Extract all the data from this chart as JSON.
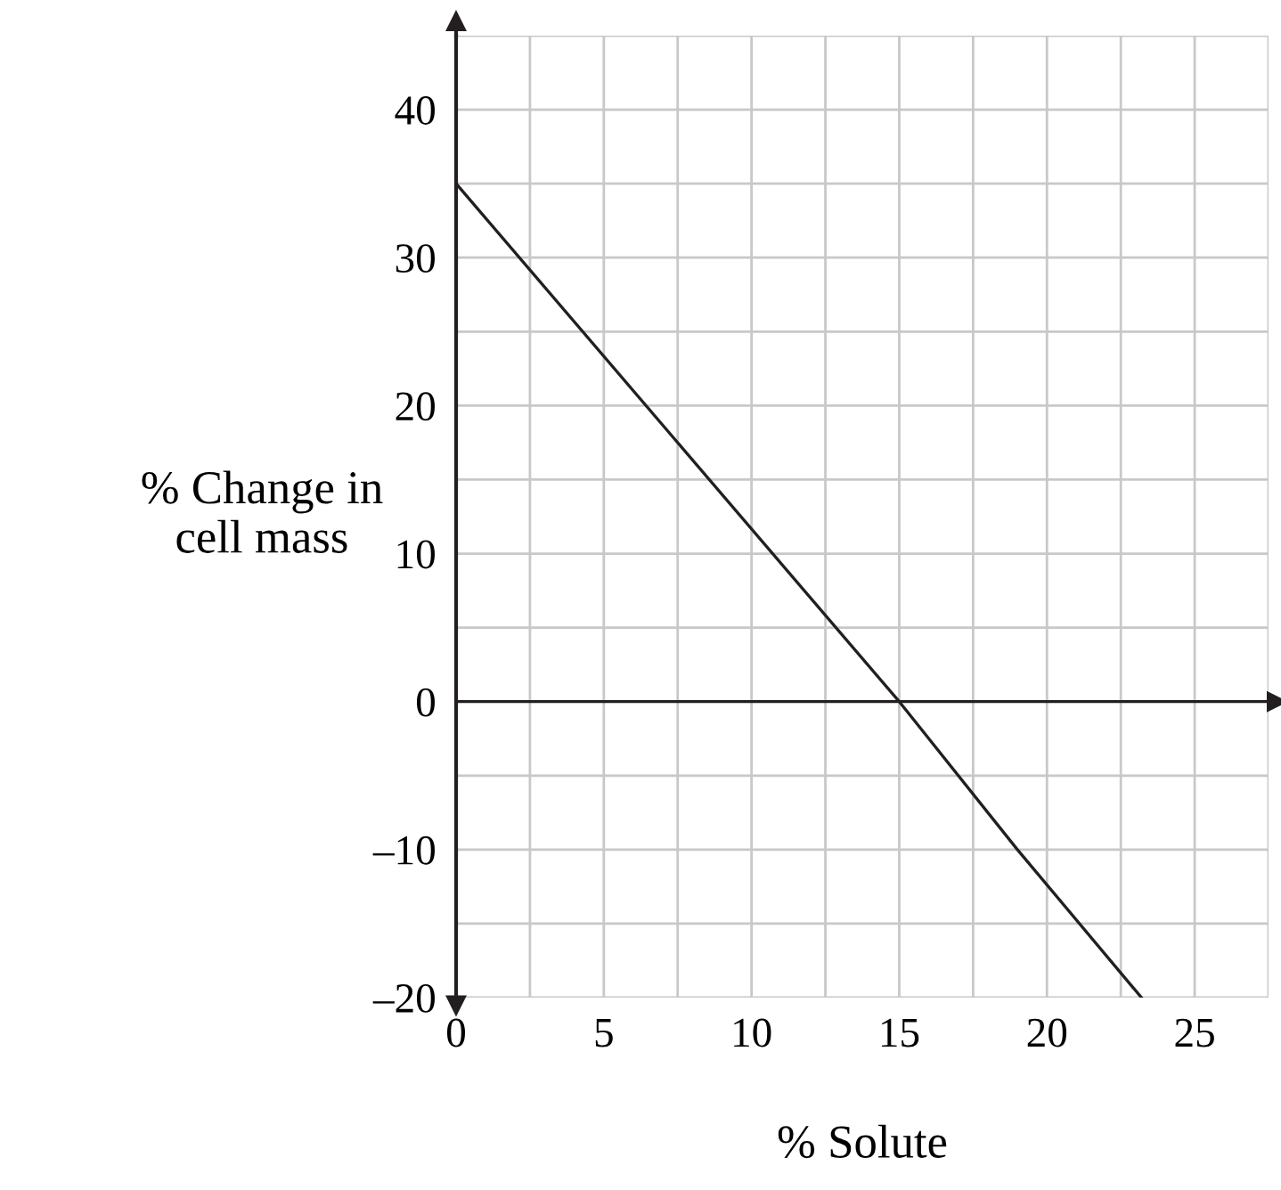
{
  "chart_data": {
    "type": "line",
    "xlabel": "% Solute",
    "ylabel": "% Change in\ncell mass",
    "x": [
      0,
      15,
      19,
      23.2
    ],
    "series": [
      {
        "color": "#231f20",
        "values": [
          35,
          0,
          -10,
          -20
        ]
      }
    ],
    "xlim": [
      0,
      27.5
    ],
    "ylim": [
      -20,
      45
    ],
    "xticks": [
      0,
      {
        "value": 2.5,
        "label": null
      },
      5,
      {
        "value": 7.5,
        "label": null
      },
      10,
      {
        "value": 12.5,
        "label": null
      },
      15,
      {
        "value": 17.5,
        "label": null
      },
      20,
      {
        "value": 22.5,
        "label": null
      },
      25,
      {
        "value": 27.5,
        "label": null
      }
    ],
    "yticks": [
      {
        "value": -20,
        "label": "–20"
      },
      {
        "value": -15,
        "label": null
      },
      {
        "value": -10,
        "label": "–10"
      },
      {
        "value": -5,
        "label": null
      },
      0,
      {
        "value": 5,
        "label": null
      },
      10,
      {
        "value": 15,
        "label": null
      },
      20,
      {
        "value": 25,
        "label": null
      },
      30,
      {
        "value": 35,
        "label": null
      },
      40,
      {
        "value": 45,
        "label": null
      }
    ],
    "ref_lines": [
      {
        "axis": "y",
        "value": 0,
        "label": null,
        "color": "#231f20"
      }
    ],
    "grid": true,
    "marker": "none",
    "line_style": "solid"
  }
}
